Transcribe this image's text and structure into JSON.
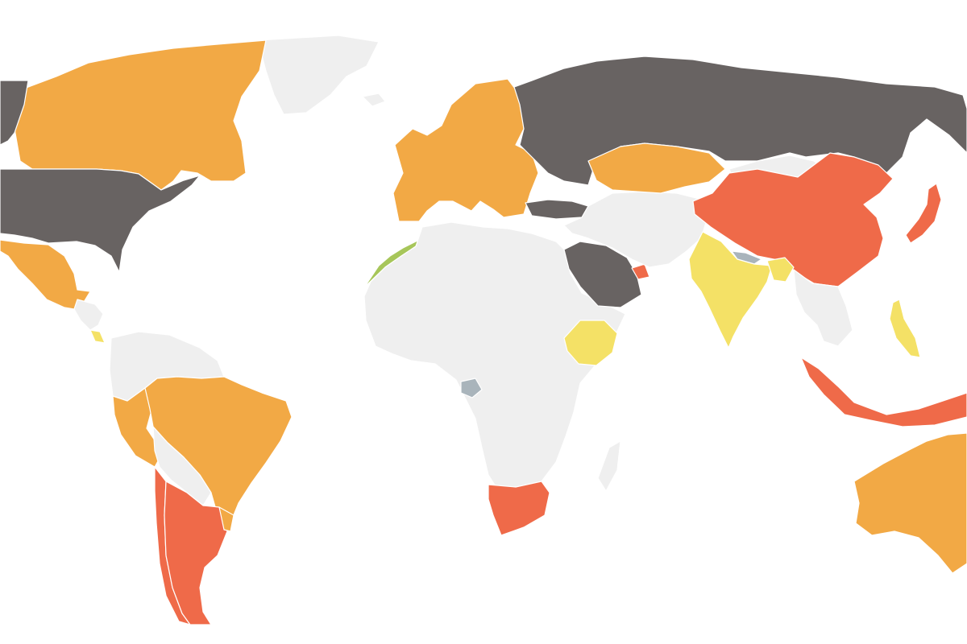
{
  "map": {
    "background": "#ffffff",
    "border_color": "#ffffff",
    "category_colors": {
      "dark": "#686362",
      "orange": "#f2a945",
      "red": "#ef6a49",
      "yellow": "#f4e166",
      "green": "#a7c65a",
      "blue_gray": "#a9b4bb",
      "no_data": "#efefef"
    },
    "regions": [
      {
        "name": "greenland",
        "category": "no_data"
      },
      {
        "name": "canada",
        "category": "orange"
      },
      {
        "name": "alaska",
        "category": "dark"
      },
      {
        "name": "united-states",
        "category": "dark"
      },
      {
        "name": "mexico",
        "category": "orange"
      },
      {
        "name": "central-america",
        "category": "no_data"
      },
      {
        "name": "costa-rica",
        "category": "yellow"
      },
      {
        "name": "colombia-venezuela",
        "category": "no_data"
      },
      {
        "name": "peru",
        "category": "orange"
      },
      {
        "name": "brazil",
        "category": "orange"
      },
      {
        "name": "bolivia-paraguay",
        "category": "no_data"
      },
      {
        "name": "chile",
        "category": "red"
      },
      {
        "name": "argentina",
        "category": "red"
      },
      {
        "name": "uruguay",
        "category": "orange"
      },
      {
        "name": "iceland",
        "category": "no_data"
      },
      {
        "name": "europe",
        "category": "orange"
      },
      {
        "name": "morocco",
        "category": "green"
      },
      {
        "name": "africa",
        "category": "no_data"
      },
      {
        "name": "gabon",
        "category": "blue_gray"
      },
      {
        "name": "ethiopia",
        "category": "yellow"
      },
      {
        "name": "south-africa",
        "category": "red"
      },
      {
        "name": "madagascar",
        "category": "no_data"
      },
      {
        "name": "russia",
        "category": "dark"
      },
      {
        "name": "turkey",
        "category": "dark"
      },
      {
        "name": "saudi-arabia",
        "category": "dark"
      },
      {
        "name": "uae",
        "category": "red"
      },
      {
        "name": "middle-east-central-asia",
        "category": "no_data"
      },
      {
        "name": "kazakhstan",
        "category": "orange"
      },
      {
        "name": "mongolia",
        "category": "no_data"
      },
      {
        "name": "china",
        "category": "red"
      },
      {
        "name": "india",
        "category": "yellow"
      },
      {
        "name": "nepal",
        "category": "blue_gray"
      },
      {
        "name": "bhutan-bangladesh",
        "category": "yellow"
      },
      {
        "name": "southeast-asia",
        "category": "no_data"
      },
      {
        "name": "japan",
        "category": "red"
      },
      {
        "name": "philippines",
        "category": "yellow"
      },
      {
        "name": "indonesia",
        "category": "red"
      },
      {
        "name": "australia",
        "category": "orange"
      }
    ]
  }
}
